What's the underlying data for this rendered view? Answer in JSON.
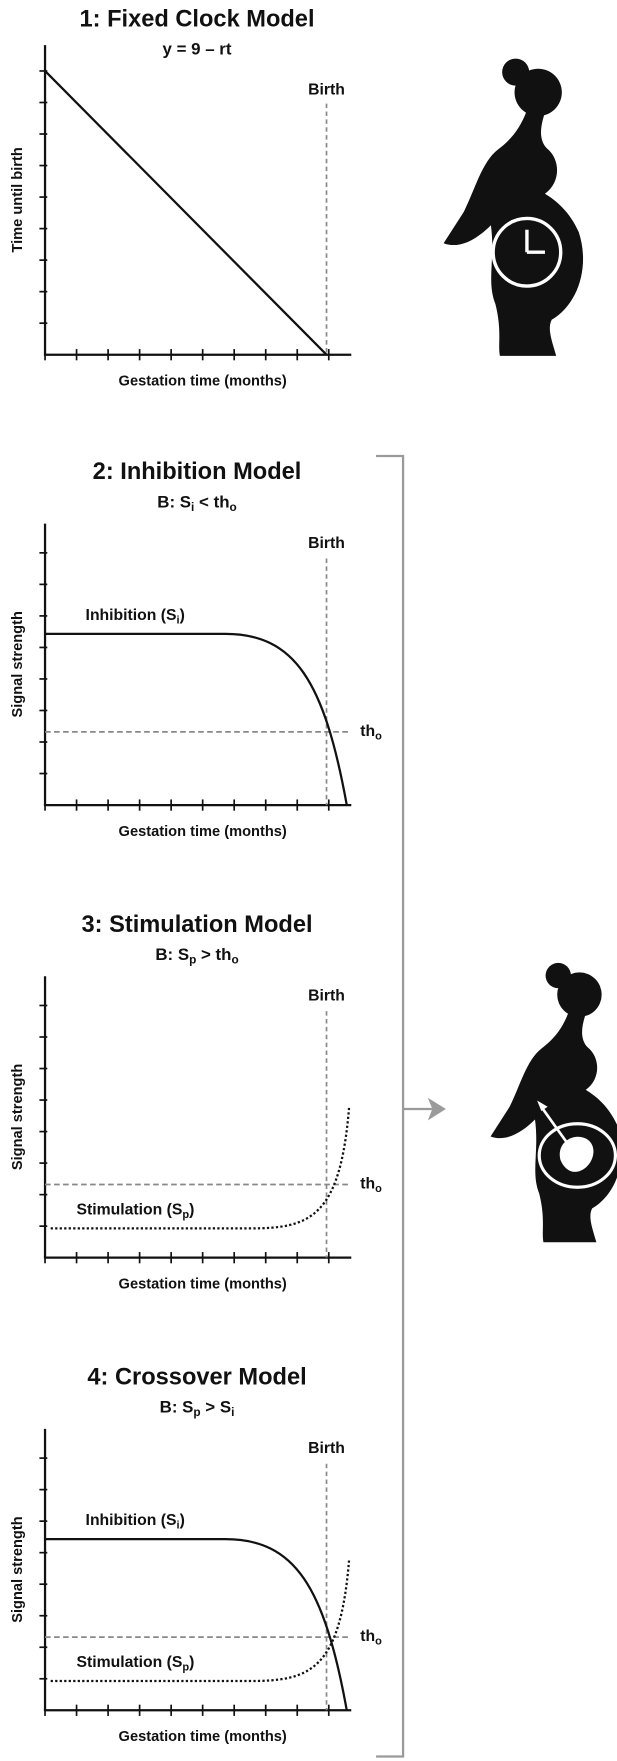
{
  "panels": [
    {
      "title": "1: Fixed Clock Model",
      "subtitle": [
        "y = 9 – rt"
      ],
      "y_label": "Time until birth",
      "x_label": "Gestation time (months)",
      "birth_label": "Birth"
    },
    {
      "title": "2: Inhibition Model",
      "subtitle": [
        "B: S",
        "i",
        " < th",
        "o"
      ],
      "y_label": "Signal strength",
      "x_label": "Gestation time (months)",
      "birth_label": "Birth",
      "threshold_label": [
        "th",
        "o"
      ],
      "inhibition_label": [
        "Inhibition (S",
        "i",
        ")"
      ]
    },
    {
      "title": "3: Stimulation Model",
      "subtitle": [
        "B: S",
        "p",
        " > th",
        "o"
      ],
      "y_label": "Signal strength",
      "x_label": "Gestation time (months)",
      "birth_label": "Birth",
      "threshold_label": [
        "th",
        "o"
      ],
      "stimulation_label": [
        "Stimulation (S",
        "p",
        ")"
      ]
    },
    {
      "title": "4: Crossover Model",
      "subtitle": [
        "B: S",
        "p",
        " > S",
        "i"
      ],
      "y_label": "Signal strength",
      "x_label": "Gestation time (months)",
      "birth_label": "Birth",
      "threshold_label": [
        "th",
        "o"
      ],
      "inhibition_label": [
        "Inhibition (S",
        "i",
        ")"
      ],
      "stimulation_label": [
        "Stimulation (S",
        "p",
        ")"
      ]
    }
  ]
}
